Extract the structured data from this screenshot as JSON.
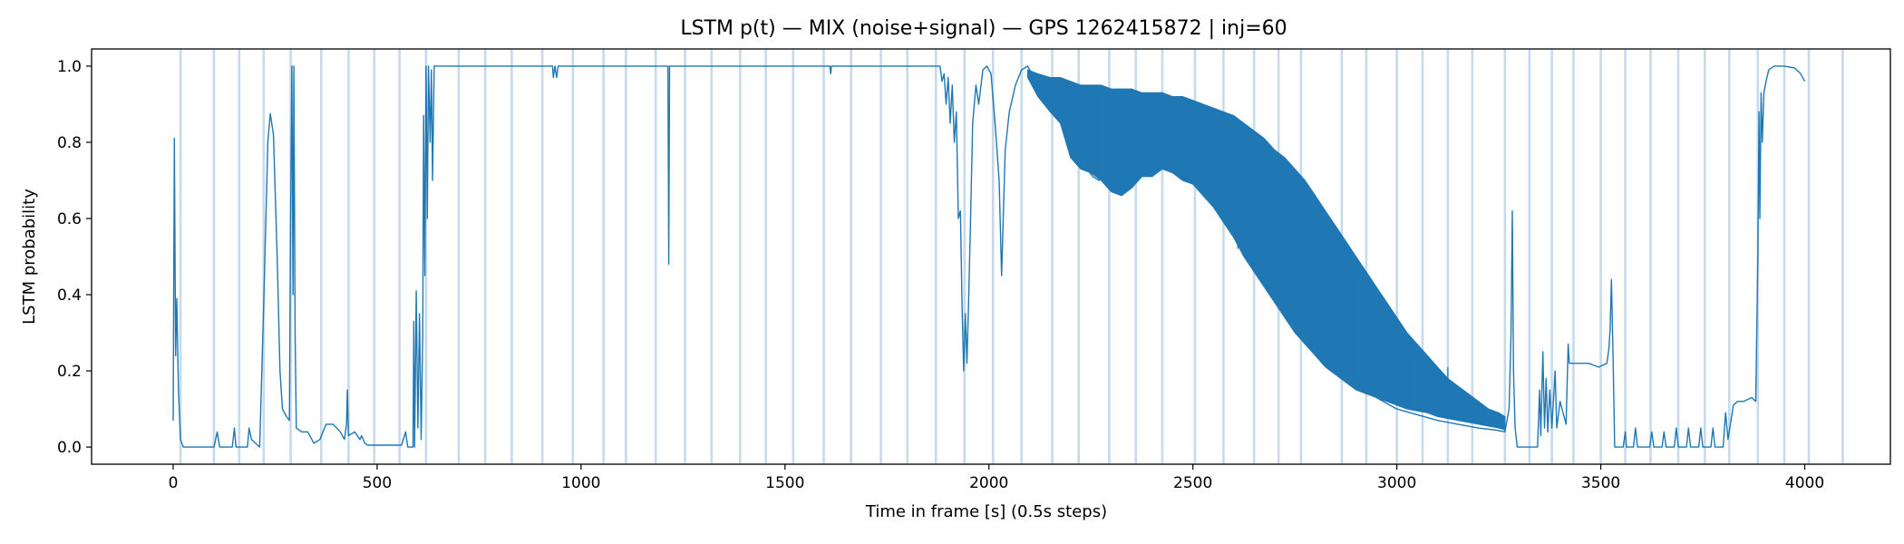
{
  "chart_data": {
    "type": "line",
    "title": "LSTM p(t) — MIX (noise+signal) — GPS 1262415872 | inj=60",
    "xlabel": "Time in frame [s] (0.5s steps)",
    "ylabel": "LSTM probability",
    "xlim": [
      -200,
      4210
    ],
    "ylim": [
      -0.045,
      1.045
    ],
    "grid": false,
    "legend": "none",
    "line_color": "#1f77b4",
    "marker_color": "#a9c6e2",
    "xticks": [
      {
        "value": 0,
        "label": "0"
      },
      {
        "value": 500,
        "label": "500"
      },
      {
        "value": 1000,
        "label": "1000"
      },
      {
        "value": 1500,
        "label": "1500"
      },
      {
        "value": 2000,
        "label": "2000"
      },
      {
        "value": 2500,
        "label": "2500"
      },
      {
        "value": 3000,
        "label": "3000"
      },
      {
        "value": 3500,
        "label": "3500"
      },
      {
        "value": 4000,
        "label": "4000"
      }
    ],
    "yticks": [
      {
        "value": 0.0,
        "label": "0.0"
      },
      {
        "value": 0.2,
        "label": "0.2"
      },
      {
        "value": 0.4,
        "label": "0.4"
      },
      {
        "value": 0.6,
        "label": "0.6"
      },
      {
        "value": 0.8,
        "label": "0.8"
      },
      {
        "value": 1.0,
        "label": "1.0"
      }
    ],
    "vertical_markers_x": [
      18,
      100,
      162,
      222,
      288,
      363,
      430,
      493,
      555,
      620,
      700,
      765,
      830,
      905,
      980,
      1055,
      1110,
      1183,
      1255,
      1320,
      1390,
      1453,
      1520,
      1595,
      1662,
      1735,
      1800,
      1870,
      1940,
      2010,
      2080,
      2155,
      2220,
      2295,
      2360,
      2425,
      2505,
      2575,
      2650,
      2710,
      2765,
      2865,
      2925,
      3000,
      3063,
      3125,
      3185,
      3265,
      3325,
      3380,
      3433,
      3500,
      3560,
      3622,
      3690,
      3755,
      3815,
      3885,
      3950,
      4010,
      4093
    ],
    "line_points": [
      [
        0,
        0.07
      ],
      [
        3,
        0.81
      ],
      [
        6,
        0.24
      ],
      [
        9,
        0.39
      ],
      [
        13,
        0.15
      ],
      [
        18,
        0.02
      ],
      [
        25,
        0.0
      ],
      [
        100,
        0.0
      ],
      [
        108,
        0.04
      ],
      [
        114,
        0.0
      ],
      [
        145,
        0.0
      ],
      [
        150,
        0.05
      ],
      [
        154,
        0.0
      ],
      [
        182,
        0.0
      ],
      [
        186,
        0.05
      ],
      [
        192,
        0.02
      ],
      [
        212,
        0.0
      ],
      [
        222,
        0.38
      ],
      [
        232,
        0.8
      ],
      [
        238,
        0.875
      ],
      [
        246,
        0.82
      ],
      [
        255,
        0.5
      ],
      [
        262,
        0.2
      ],
      [
        268,
        0.1
      ],
      [
        278,
        0.08
      ],
      [
        285,
        0.07
      ],
      [
        288,
        0.6
      ],
      [
        291,
        1.0
      ],
      [
        294,
        0.4
      ],
      [
        296,
        1.0
      ],
      [
        299,
        0.3
      ],
      [
        302,
        0.05
      ],
      [
        315,
        0.04
      ],
      [
        330,
        0.04
      ],
      [
        345,
        0.01
      ],
      [
        360,
        0.02
      ],
      [
        375,
        0.06
      ],
      [
        392,
        0.06
      ],
      [
        410,
        0.04
      ],
      [
        420,
        0.02
      ],
      [
        425,
        0.06
      ],
      [
        427,
        0.15
      ],
      [
        430,
        0.03
      ],
      [
        445,
        0.04
      ],
      [
        458,
        0.02
      ],
      [
        462,
        0.03
      ],
      [
        470,
        0.01
      ],
      [
        478,
        0.005
      ],
      [
        520,
        0.005
      ],
      [
        540,
        0.005
      ],
      [
        560,
        0.005
      ],
      [
        570,
        0.04
      ],
      [
        575,
        0.0
      ],
      [
        588,
        0.0
      ],
      [
        590,
        0.33
      ],
      [
        592,
        0.0
      ],
      [
        596,
        0.41
      ],
      [
        600,
        0.05
      ],
      [
        604,
        0.35
      ],
      [
        608,
        0.02
      ],
      [
        612,
        0.3
      ],
      [
        614,
        0.87
      ],
      [
        617,
        0.45
      ],
      [
        620,
        1.0
      ],
      [
        623,
        0.6
      ],
      [
        626,
        1.0
      ],
      [
        630,
        0.8
      ],
      [
        633,
        0.99
      ],
      [
        636,
        0.7
      ],
      [
        640,
        1.0
      ],
      [
        660,
        1.0
      ],
      [
        900,
        1.0
      ],
      [
        930,
        1.0
      ],
      [
        932,
        0.97
      ],
      [
        936,
        1.0
      ],
      [
        940,
        0.97
      ],
      [
        944,
        1.0
      ],
      [
        1213,
        1.0
      ],
      [
        1215,
        0.48
      ],
      [
        1217,
        1.0
      ],
      [
        1610,
        1.0
      ],
      [
        1612,
        0.98
      ],
      [
        1614,
        1.0
      ],
      [
        1860,
        1.0
      ],
      [
        1880,
        1.0
      ],
      [
        1885,
        0.96
      ],
      [
        1890,
        0.98
      ],
      [
        1895,
        0.9
      ],
      [
        1900,
        0.97
      ],
      [
        1905,
        0.85
      ],
      [
        1910,
        0.95
      ],
      [
        1915,
        0.8
      ],
      [
        1920,
        0.88
      ],
      [
        1925,
        0.6
      ],
      [
        1930,
        0.62
      ],
      [
        1934,
        0.37
      ],
      [
        1938,
        0.2
      ],
      [
        1942,
        0.35
      ],
      [
        1946,
        0.22
      ],
      [
        1950,
        0.38
      ],
      [
        1955,
        0.6
      ],
      [
        1960,
        0.85
      ],
      [
        1968,
        0.95
      ],
      [
        1975,
        0.9
      ],
      [
        1985,
        0.99
      ],
      [
        1995,
        1.0
      ],
      [
        2005,
        0.98
      ],
      [
        2015,
        0.85
      ],
      [
        2025,
        0.7
      ],
      [
        2031,
        0.45
      ],
      [
        2035,
        0.6
      ],
      [
        2040,
        0.78
      ],
      [
        2050,
        0.88
      ],
      [
        2065,
        0.95
      ],
      [
        2080,
        0.99
      ],
      [
        2095,
        1.0
      ],
      [
        2105,
        0.98
      ],
      [
        2120,
        0.96
      ],
      [
        2135,
        0.94
      ],
      [
        2150,
        0.93
      ],
      [
        2160,
        0.92
      ],
      [
        2175,
        0.89
      ],
      [
        2190,
        0.85
      ],
      [
        2205,
        0.8
      ],
      [
        2220,
        0.77
      ],
      [
        2240,
        0.73
      ],
      [
        2255,
        0.71
      ],
      [
        2270,
        0.7
      ],
      [
        2285,
        0.72
      ],
      [
        2300,
        0.68
      ],
      [
        2320,
        0.67
      ],
      [
        2340,
        0.7
      ],
      [
        2360,
        0.72
      ],
      [
        2380,
        0.73
      ],
      [
        2400,
        0.74
      ],
      [
        2420,
        0.75
      ],
      [
        2440,
        0.74
      ],
      [
        2460,
        0.73
      ],
      [
        2480,
        0.72
      ],
      [
        2500,
        0.71
      ],
      [
        2550,
        0.66
      ],
      [
        2600,
        0.6
      ],
      [
        2650,
        0.5
      ],
      [
        2700,
        0.42
      ],
      [
        2750,
        0.34
      ],
      [
        2800,
        0.27
      ],
      [
        2850,
        0.21
      ],
      [
        2900,
        0.17
      ],
      [
        2950,
        0.13
      ],
      [
        3000,
        0.1
      ],
      [
        3050,
        0.085
      ],
      [
        3100,
        0.07
      ],
      [
        3150,
        0.06
      ],
      [
        3200,
        0.05
      ],
      [
        3240,
        0.045
      ],
      [
        3265,
        0.04
      ],
      [
        3275,
        0.1
      ],
      [
        3280,
        0.3
      ],
      [
        3283,
        0.62
      ],
      [
        3286,
        0.2
      ],
      [
        3290,
        0.05
      ],
      [
        3295,
        0.0
      ],
      [
        3345,
        0.0
      ],
      [
        3350,
        0.15
      ],
      [
        3353,
        0.03
      ],
      [
        3358,
        0.25
      ],
      [
        3362,
        0.05
      ],
      [
        3366,
        0.18
      ],
      [
        3370,
        0.04
      ],
      [
        3375,
        0.15
      ],
      [
        3380,
        0.05
      ],
      [
        3388,
        0.2
      ],
      [
        3392,
        0.05
      ],
      [
        3400,
        0.12
      ],
      [
        3405,
        0.1
      ],
      [
        3410,
        0.08
      ],
      [
        3415,
        0.06
      ],
      [
        3420,
        0.27
      ],
      [
        3423,
        0.22
      ],
      [
        3430,
        0.22
      ],
      [
        3450,
        0.22
      ],
      [
        3470,
        0.22
      ],
      [
        3495,
        0.21
      ],
      [
        3515,
        0.22
      ],
      [
        3520,
        0.26
      ],
      [
        3523,
        0.31
      ],
      [
        3526,
        0.44
      ],
      [
        3530,
        0.24
      ],
      [
        3534,
        0.0
      ],
      [
        3555,
        0.0
      ],
      [
        3560,
        0.04
      ],
      [
        3563,
        0.0
      ],
      [
        3580,
        0.0
      ],
      [
        3585,
        0.05
      ],
      [
        3590,
        0.0
      ],
      [
        3620,
        0.0
      ],
      [
        3625,
        0.04
      ],
      [
        3630,
        0.0
      ],
      [
        3650,
        0.0
      ],
      [
        3655,
        0.04
      ],
      [
        3660,
        0.0
      ],
      [
        3680,
        0.0
      ],
      [
        3685,
        0.05
      ],
      [
        3690,
        0.0
      ],
      [
        3710,
        0.0
      ],
      [
        3715,
        0.05
      ],
      [
        3720,
        0.0
      ],
      [
        3740,
        0.0
      ],
      [
        3745,
        0.05
      ],
      [
        3750,
        0.0
      ],
      [
        3770,
        0.0
      ],
      [
        3775,
        0.05
      ],
      [
        3780,
        0.0
      ],
      [
        3800,
        0.0
      ],
      [
        3806,
        0.09
      ],
      [
        3812,
        0.02
      ],
      [
        3825,
        0.11
      ],
      [
        3835,
        0.12
      ],
      [
        3850,
        0.12
      ],
      [
        3870,
        0.13
      ],
      [
        3880,
        0.12
      ],
      [
        3885,
        0.5
      ],
      [
        3888,
        0.88
      ],
      [
        3890,
        0.6
      ],
      [
        3893,
        0.93
      ],
      [
        3896,
        0.8
      ],
      [
        3900,
        0.93
      ],
      [
        3905,
        0.96
      ],
      [
        3912,
        0.99
      ],
      [
        3925,
        1.0
      ],
      [
        3950,
        1.0
      ],
      [
        3975,
        0.995
      ],
      [
        3990,
        0.98
      ],
      [
        4000,
        0.96
      ]
    ],
    "band_points": [
      [
        2095,
        0.99,
        0.97
      ],
      [
        2120,
        0.98,
        0.92
      ],
      [
        2150,
        0.97,
        0.88
      ],
      [
        2175,
        0.97,
        0.85
      ],
      [
        2200,
        0.96,
        0.76
      ],
      [
        2225,
        0.95,
        0.73
      ],
      [
        2250,
        0.95,
        0.72
      ],
      [
        2275,
        0.95,
        0.7
      ],
      [
        2300,
        0.94,
        0.67
      ],
      [
        2325,
        0.94,
        0.66
      ],
      [
        2350,
        0.94,
        0.68
      ],
      [
        2375,
        0.93,
        0.71
      ],
      [
        2400,
        0.93,
        0.71
      ],
      [
        2425,
        0.93,
        0.73
      ],
      [
        2450,
        0.92,
        0.72
      ],
      [
        2475,
        0.92,
        0.7
      ],
      [
        2500,
        0.91,
        0.69
      ],
      [
        2525,
        0.9,
        0.66
      ],
      [
        2550,
        0.89,
        0.63
      ],
      [
        2575,
        0.88,
        0.59
      ],
      [
        2600,
        0.87,
        0.55
      ],
      [
        2625,
        0.85,
        0.5
      ],
      [
        2650,
        0.83,
        0.46
      ],
      [
        2675,
        0.81,
        0.42
      ],
      [
        2700,
        0.78,
        0.38
      ],
      [
        2725,
        0.76,
        0.34
      ],
      [
        2750,
        0.73,
        0.3
      ],
      [
        2775,
        0.7,
        0.27
      ],
      [
        2800,
        0.66,
        0.24
      ],
      [
        2825,
        0.62,
        0.21
      ],
      [
        2850,
        0.58,
        0.19
      ],
      [
        2875,
        0.54,
        0.17
      ],
      [
        2900,
        0.5,
        0.15
      ],
      [
        2925,
        0.46,
        0.14
      ],
      [
        2950,
        0.42,
        0.13
      ],
      [
        2975,
        0.38,
        0.12
      ],
      [
        3000,
        0.34,
        0.11
      ],
      [
        3025,
        0.3,
        0.1
      ],
      [
        3050,
        0.27,
        0.095
      ],
      [
        3075,
        0.24,
        0.09
      ],
      [
        3100,
        0.21,
        0.08
      ],
      [
        3125,
        0.18,
        0.075
      ],
      [
        3150,
        0.16,
        0.07
      ],
      [
        3175,
        0.14,
        0.065
      ],
      [
        3200,
        0.12,
        0.06
      ],
      [
        3225,
        0.1,
        0.055
      ],
      [
        3250,
        0.09,
        0.05
      ],
      [
        3265,
        0.08,
        0.045
      ]
    ],
    "spike_points": [
      [
        2265,
        0.93,
        0.71
      ],
      [
        2455,
        0.89,
        0.73
      ],
      [
        2610,
        0.81,
        0.52
      ],
      [
        2660,
        0.72,
        0.45
      ],
      [
        2770,
        0.56,
        0.3
      ],
      [
        2855,
        0.42,
        0.24
      ],
      [
        2892,
        0.45,
        0.18
      ],
      [
        2975,
        0.3,
        0.13
      ],
      [
        3030,
        0.25,
        0.1
      ],
      [
        3125,
        0.21,
        0.075
      ]
    ]
  }
}
